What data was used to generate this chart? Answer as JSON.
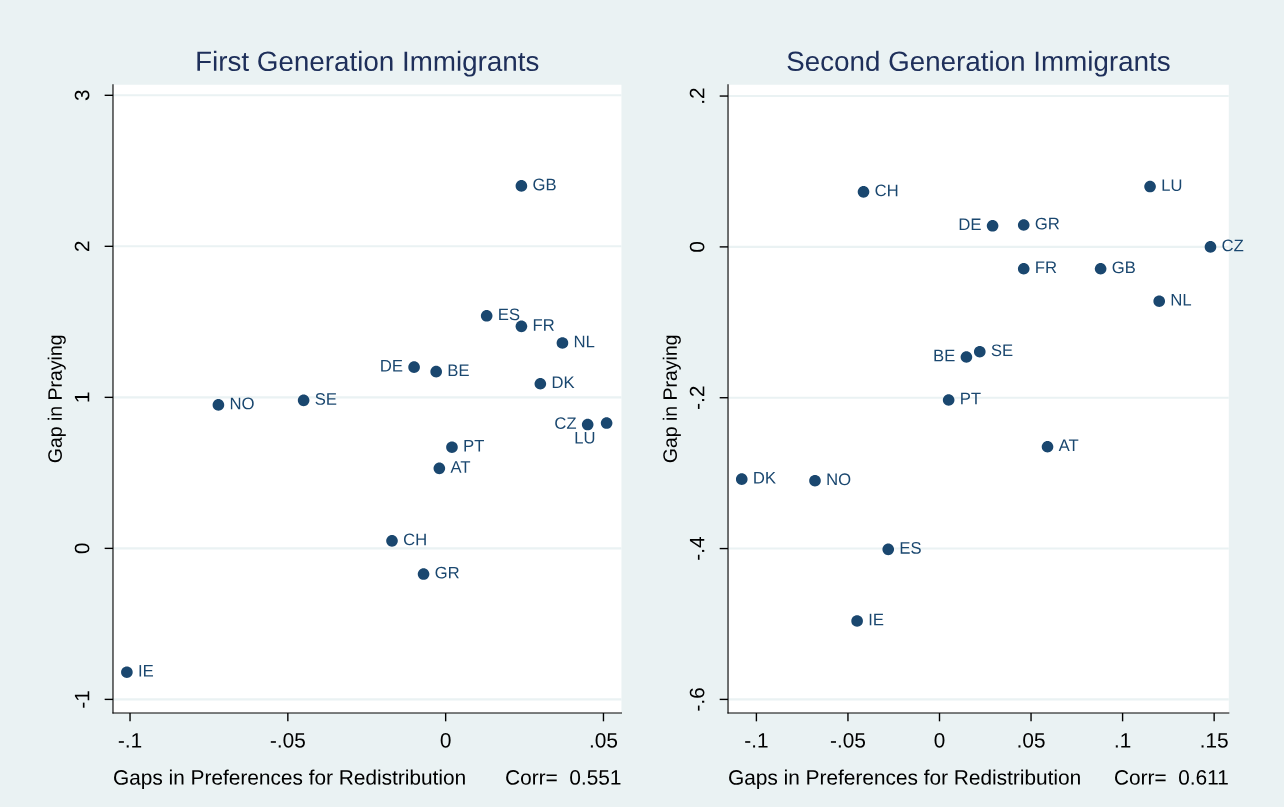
{
  "chart_data": [
    {
      "type": "scatter",
      "title": "First Generation Immigrants",
      "xlabel": "Gaps in Preferences for Redistribution",
      "ylabel": "Gap in Praying",
      "series": [
        {
          "color": "#1a476f",
          "x": [
            0.024,
            0.013,
            0.024,
            0.037,
            -0.01,
            -0.003,
            0.03,
            0.045,
            0.051,
            0.002,
            -0.002,
            -0.072,
            -0.045,
            -0.017,
            -0.007,
            -0.101
          ],
          "values": [
            2.4,
            1.54,
            1.47,
            1.36,
            1.2,
            1.17,
            1.09,
            0.82,
            0.83,
            0.67,
            0.53,
            0.95,
            0.98,
            0.05,
            -0.17,
            -0.82
          ]
        }
      ],
      "annotations": [
        {
          "text": "GB",
          "x": 0.024,
          "y": 2.4
        },
        {
          "text": "ES",
          "x": 0.013,
          "y": 1.54
        },
        {
          "text": "FR",
          "x": 0.024,
          "y": 1.47
        },
        {
          "text": "NL",
          "x": 0.037,
          "y": 1.36
        },
        {
          "text": "DE",
          "x": -0.01,
          "y": 1.2
        },
        {
          "text": "BE",
          "x": -0.003,
          "y": 1.17
        },
        {
          "text": "DK",
          "x": 0.03,
          "y": 1.09
        },
        {
          "text": "CZ",
          "x": 0.045,
          "y": 0.82
        },
        {
          "text": "LU",
          "x": 0.051,
          "y": 0.83
        },
        {
          "text": "PT",
          "x": 0.002,
          "y": 0.67
        },
        {
          "text": "AT",
          "x": -0.002,
          "y": 0.53
        },
        {
          "text": "NO",
          "x": -0.072,
          "y": 0.95
        },
        {
          "text": "SE",
          "x": -0.045,
          "y": 0.98
        },
        {
          "text": "CH",
          "x": -0.017,
          "y": 0.05
        },
        {
          "text": "GR",
          "x": -0.007,
          "y": -0.17
        },
        {
          "text": "IE",
          "x": -0.101,
          "y": -0.82
        },
        "Corr=  0.551"
      ],
      "xlim": [
        -0.1054,
        0.0557
      ],
      "ylim": [
        -1.09,
        3.07
      ],
      "xticks": [
        {
          "value": -0.1,
          "label": "-.1"
        },
        {
          "value": -0.05,
          "label": "-.05"
        },
        0,
        {
          "value": 0.05,
          "label": ".05"
        }
      ],
      "yticks": [
        -1,
        0,
        1,
        2,
        3
      ],
      "grid": "y",
      "marker": "circle"
    },
    {
      "type": "scatter",
      "title": "Second Generation Immigrants",
      "xlabel": "Gaps in Preferences for Redistribution",
      "ylabel": "Gap in Praying",
      "series": [
        {
          "color": "#1a476f",
          "x": [
            -0.0415,
            0.115,
            0.029,
            0.046,
            0.148,
            0.046,
            0.088,
            0.12,
            0.0147,
            0.022,
            0.005,
            0.059,
            -0.108,
            -0.068,
            -0.028,
            -0.045
          ],
          "values": [
            0.073,
            0.08,
            0.028,
            0.029,
            0.0,
            -0.029,
            -0.029,
            -0.072,
            -0.146,
            -0.139,
            -0.203,
            -0.265,
            -0.308,
            -0.31,
            -0.401,
            -0.496
          ]
        }
      ],
      "annotations": [
        {
          "text": "CH",
          "x": -0.0415,
          "y": 0.073
        },
        {
          "text": "LU",
          "x": 0.115,
          "y": 0.08
        },
        {
          "text": "DE",
          "x": 0.029,
          "y": 0.028
        },
        {
          "text": "GR",
          "x": 0.046,
          "y": 0.029
        },
        {
          "text": "CZ",
          "x": 0.148,
          "y": 0.0
        },
        {
          "text": "FR",
          "x": 0.046,
          "y": -0.029
        },
        {
          "text": "GB",
          "x": 0.088,
          "y": -0.029
        },
        {
          "text": "NL",
          "x": 0.12,
          "y": -0.072
        },
        {
          "text": "BE",
          "x": 0.0147,
          "y": -0.146
        },
        {
          "text": "SE",
          "x": 0.022,
          "y": -0.139
        },
        {
          "text": "PT",
          "x": 0.005,
          "y": -0.203
        },
        {
          "text": "AT",
          "x": 0.059,
          "y": -0.265
        },
        {
          "text": "DK",
          "x": -0.108,
          "y": -0.308
        },
        {
          "text": "NO",
          "x": -0.068,
          "y": -0.31
        },
        {
          "text": "ES",
          "x": -0.028,
          "y": -0.401
        },
        {
          "text": "IE",
          "x": -0.045,
          "y": -0.496
        },
        "Corr=  0.611"
      ],
      "xlim": [
        -0.1155,
        0.158
      ],
      "ylim": [
        -0.618,
        0.215
      ],
      "xticks": [
        {
          "value": -0.1,
          "label": "-.1"
        },
        {
          "value": -0.05,
          "label": "-.05"
        },
        0,
        {
          "value": 0.05,
          "label": ".05"
        },
        {
          "value": 0.1,
          "label": ".1"
        },
        {
          "value": 0.15,
          "label": ".15"
        }
      ],
      "yticks": [
        {
          "value": 0.2,
          "label": ".2"
        },
        0,
        {
          "value": -0.2,
          "label": "-.2"
        },
        {
          "value": -0.4,
          "label": "-.4"
        },
        {
          "value": -0.6,
          "label": "-.6"
        }
      ],
      "grid": "y",
      "marker": "circle"
    }
  ]
}
